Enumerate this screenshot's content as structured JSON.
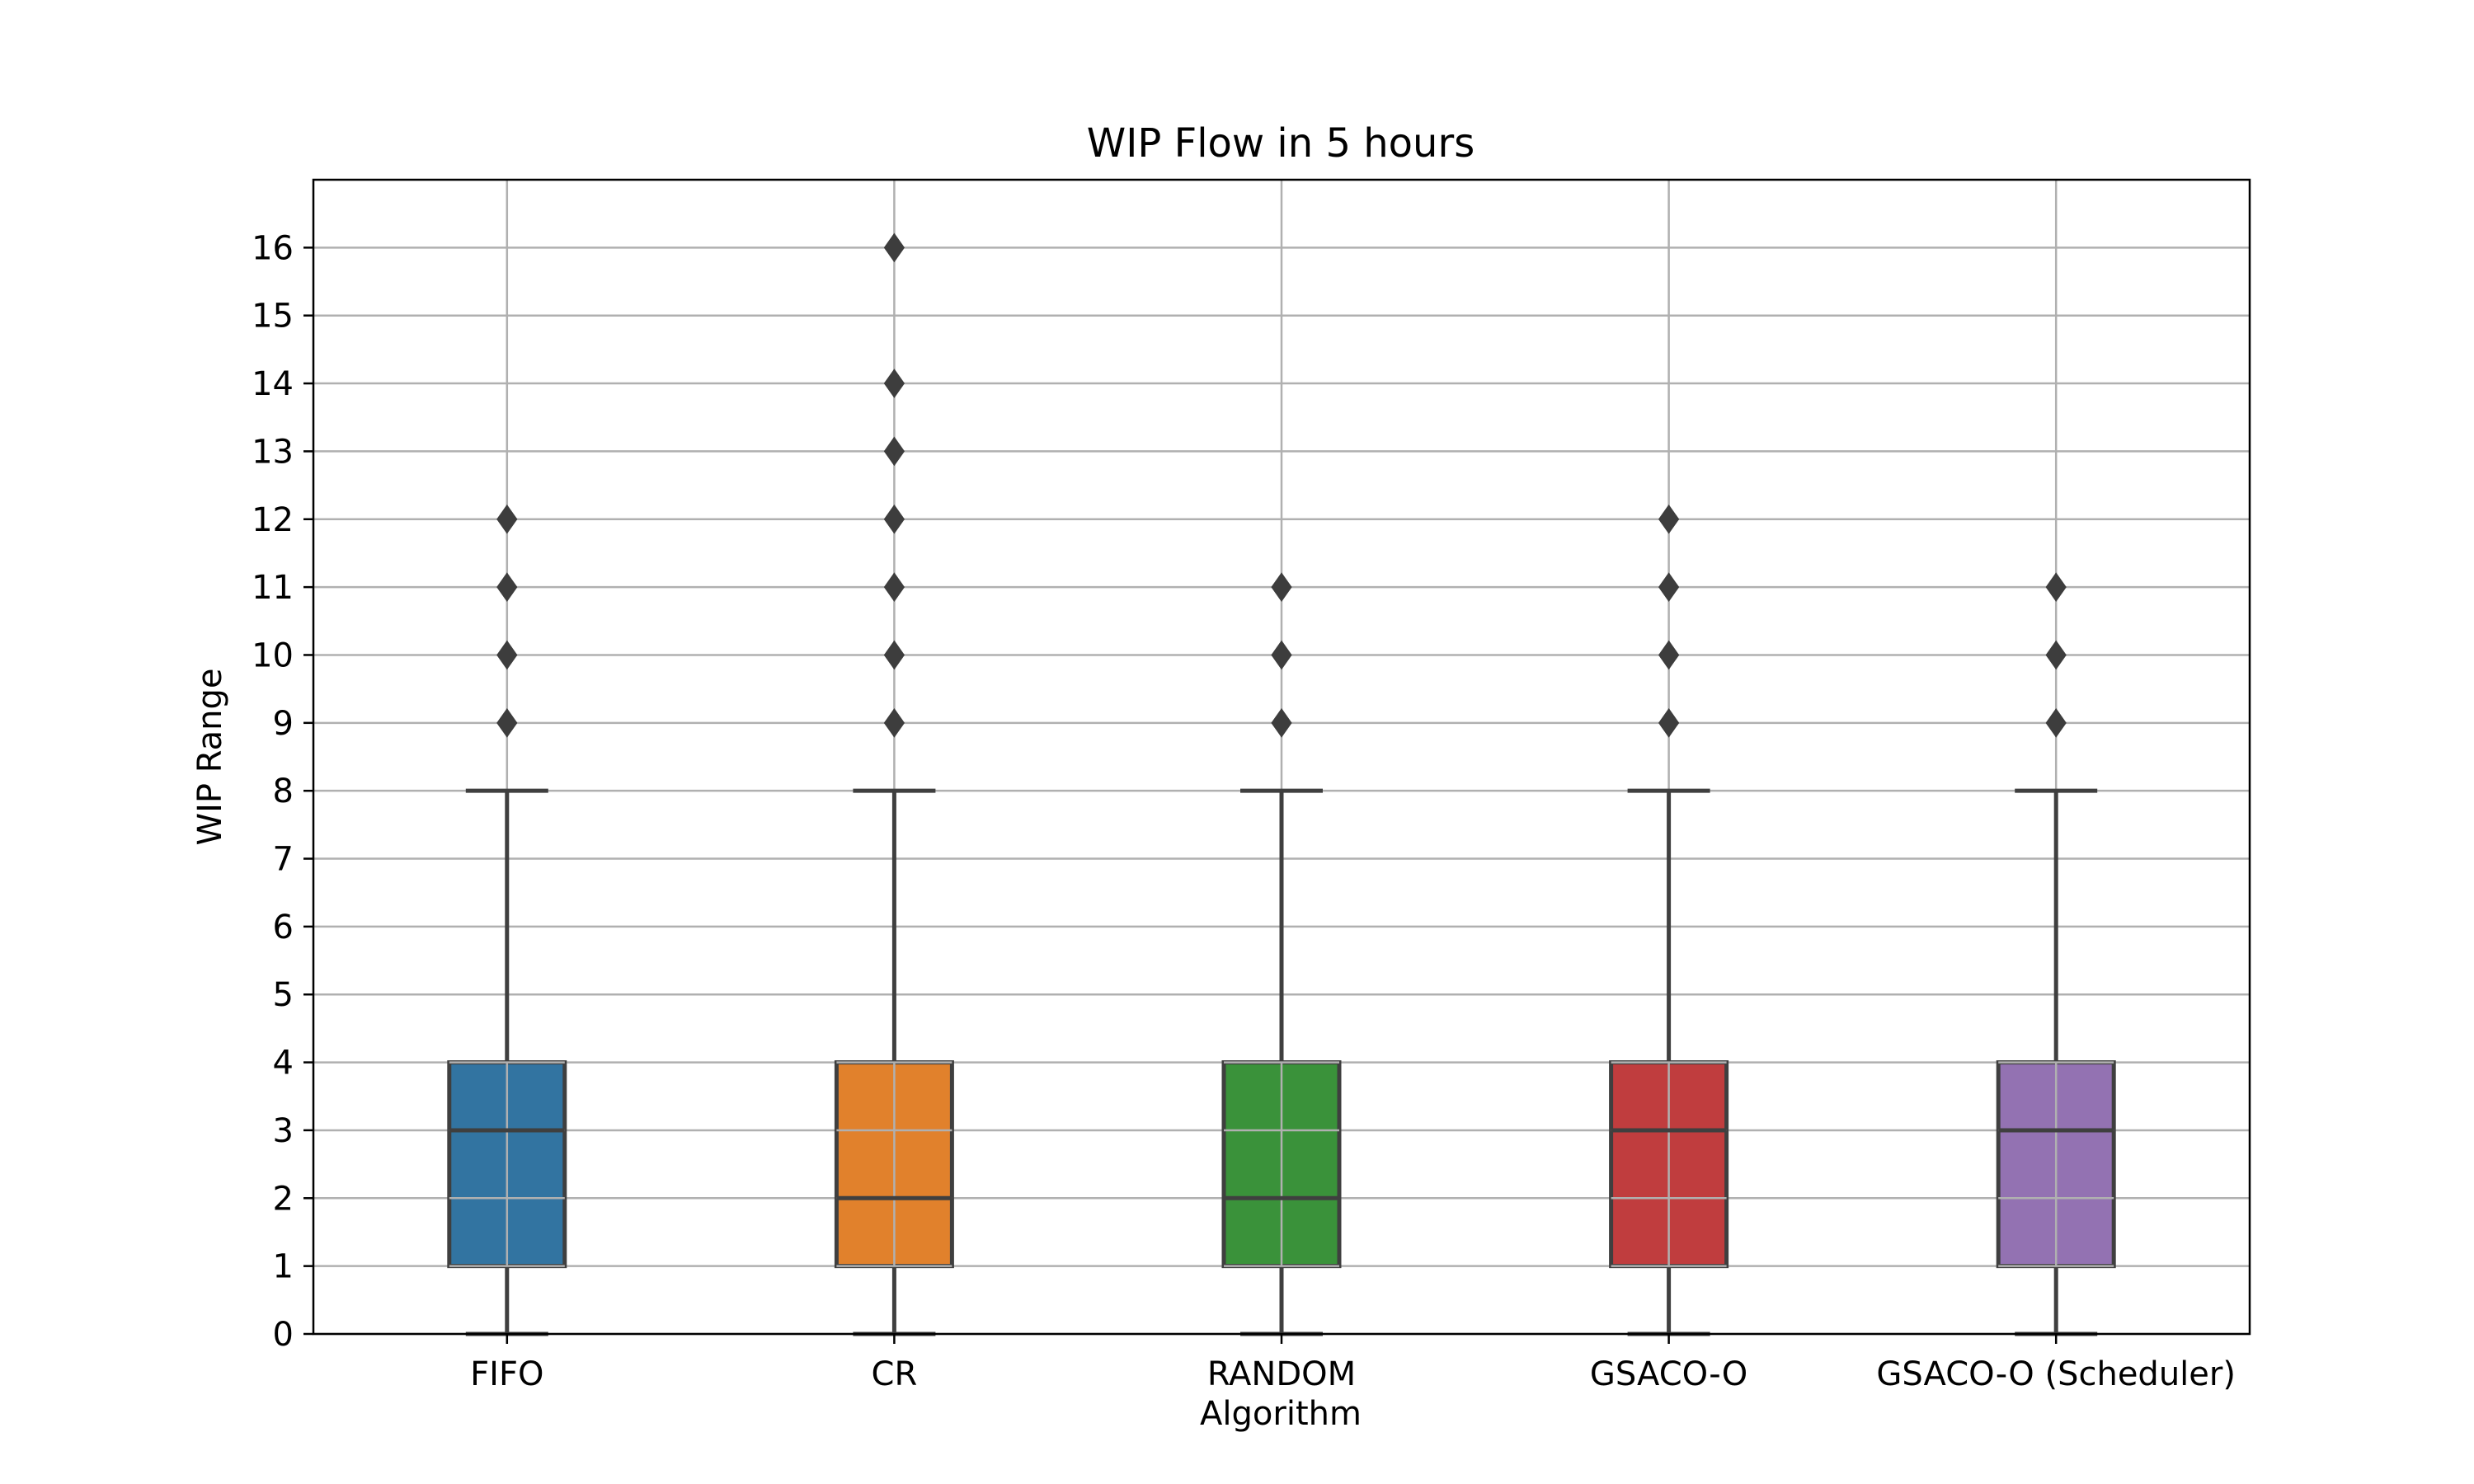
{
  "chart_data": {
    "type": "boxplot",
    "title": "WIP Flow in 5 hours",
    "xlabel": "Algorithm",
    "ylabel": "WIP Range",
    "ylim": [
      0,
      17
    ],
    "yticks": [
      0,
      1,
      2,
      3,
      4,
      5,
      6,
      7,
      8,
      9,
      10,
      11,
      12,
      13,
      14,
      15,
      16
    ],
    "grid": true,
    "categories": [
      "FIFO",
      "CR",
      "RANDOM",
      "GSACO-O",
      "GSACO-O (Scheduler)"
    ],
    "series": [
      {
        "name": "FIFO",
        "color": "#3274a1",
        "whisker_low": 0,
        "q1": 1,
        "median": 3,
        "q3": 4,
        "whisker_high": 8,
        "outliers": [
          9,
          10,
          11,
          12
        ]
      },
      {
        "name": "CR",
        "color": "#e1812c",
        "whisker_low": 0,
        "q1": 1,
        "median": 2,
        "q3": 4,
        "whisker_high": 8,
        "outliers": [
          9,
          10,
          11,
          12,
          13,
          14,
          16
        ]
      },
      {
        "name": "RANDOM",
        "color": "#3a923a",
        "whisker_low": 0,
        "q1": 1,
        "median": 2,
        "q3": 4,
        "whisker_high": 8,
        "outliers": [
          9,
          10,
          11
        ]
      },
      {
        "name": "GSACO-O",
        "color": "#c03d3e",
        "whisker_low": 0,
        "q1": 1,
        "median": 3,
        "q3": 4,
        "whisker_high": 8,
        "outliers": [
          9,
          10,
          11,
          12
        ]
      },
      {
        "name": "GSACO-O (Scheduler)",
        "color": "#9372b2",
        "whisker_low": 0,
        "q1": 1,
        "median": 3,
        "q3": 4,
        "whisker_high": 8,
        "outliers": [
          9,
          10,
          11
        ]
      }
    ]
  }
}
